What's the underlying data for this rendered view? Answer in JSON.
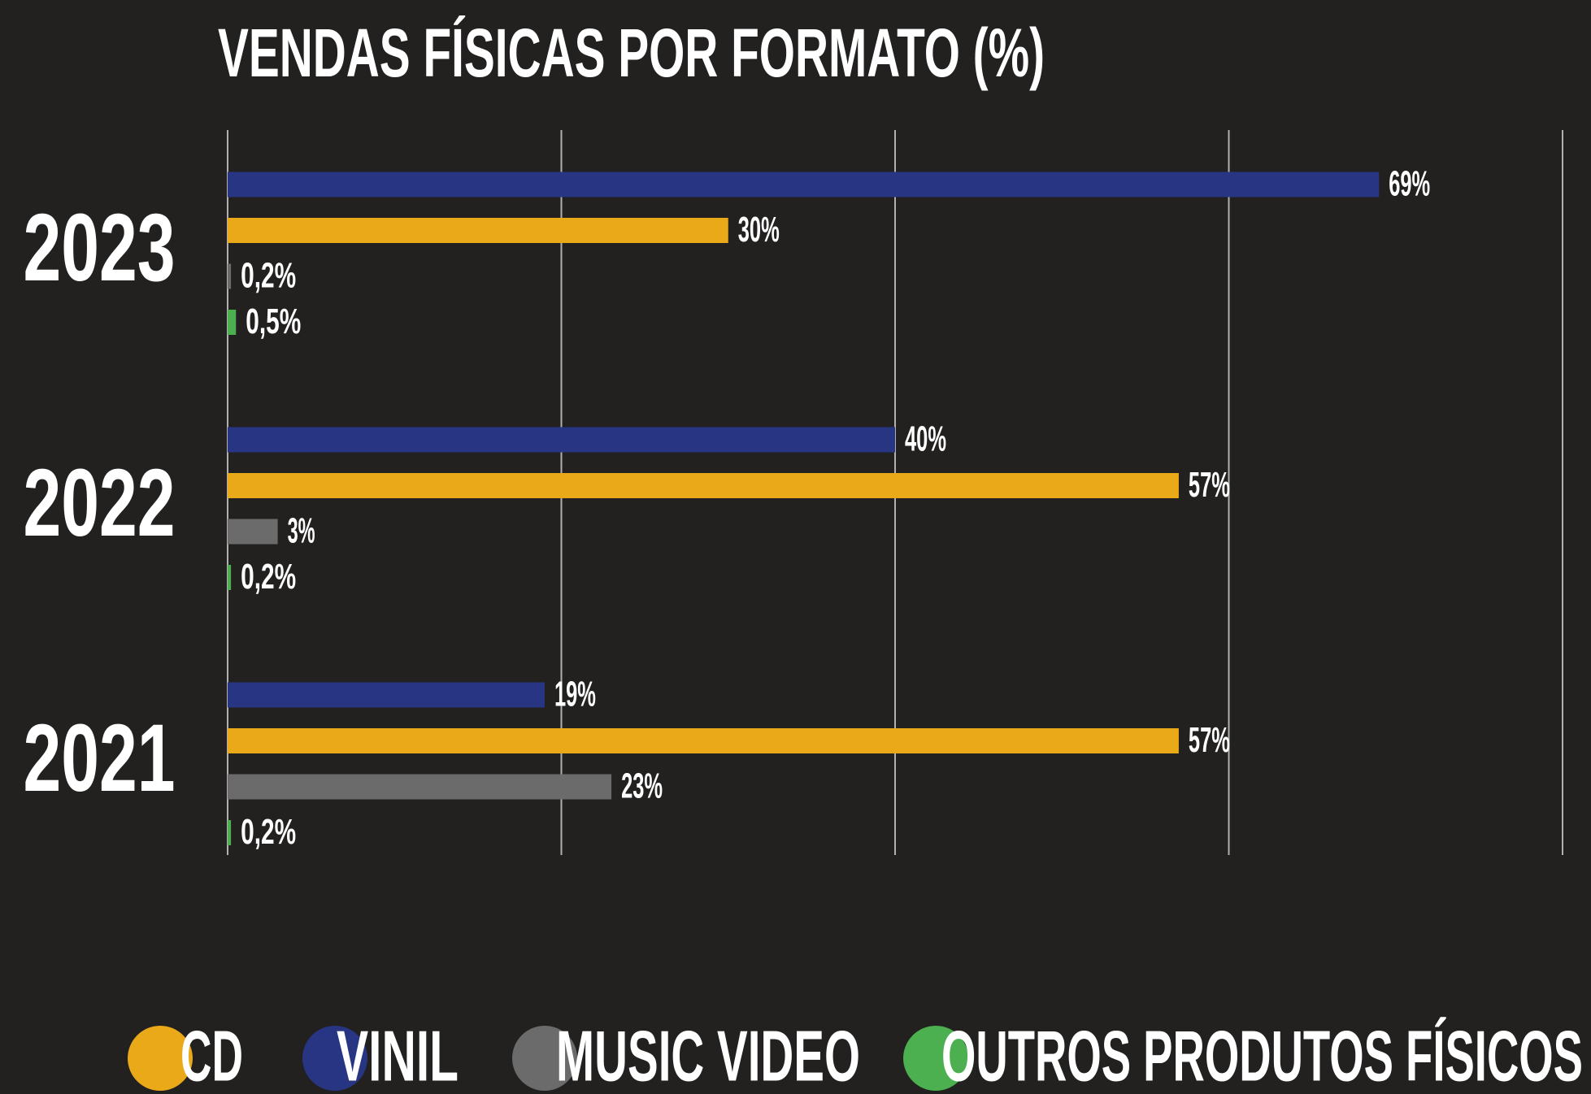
{
  "chart_data": {
    "type": "barh",
    "title": "VENDAS FÍSICAS POR FORMATO (%)",
    "categories": [
      "2023",
      "2022",
      "2021"
    ],
    "series": [
      {
        "name": "CD",
        "color": "#eaa919",
        "values": [
          30,
          57,
          57
        ],
        "value_labels": [
          "30%",
          "57%",
          "57%"
        ]
      },
      {
        "name": "VINIL",
        "color": "#283583",
        "values": [
          69,
          40,
          19
        ],
        "value_labels": [
          "69%",
          "40%",
          "19%"
        ]
      },
      {
        "name": "MUSIC VIDEO",
        "color": "#6b6b6b",
        "values": [
          0.2,
          3,
          23
        ],
        "value_labels": [
          "0,2%",
          "3%",
          "23%"
        ]
      },
      {
        "name": "OUTROS PRODUTOS FÍSICOS",
        "color": "#4caf50",
        "values": [
          0.5,
          0.2,
          0.2
        ],
        "value_labels": [
          "0,5%",
          "0,2%",
          "0,2%"
        ]
      }
    ],
    "xlim": [
      0,
      80
    ],
    "xticks": [
      0,
      20,
      40,
      60,
      80
    ],
    "grid": true,
    "legend": "bottom"
  }
}
